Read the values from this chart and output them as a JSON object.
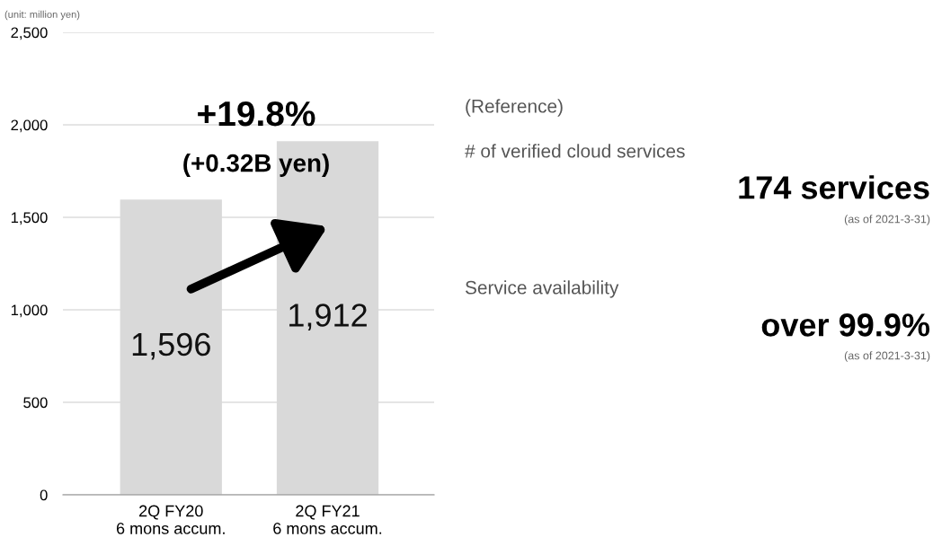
{
  "chart_data": {
    "type": "bar",
    "categories": [
      "2Q FY20\n6 mons accum.",
      "2Q FY21\n6 mons accum."
    ],
    "values": [
      1596,
      1912
    ],
    "value_labels": [
      "1,596",
      "1,912"
    ],
    "color": "#d9d9d9",
    "ylim": [
      0,
      2500
    ],
    "yticks": [
      0,
      {
        "value": 500,
        "label": "500"
      },
      {
        "value": 1000,
        "label": "1,000"
      },
      {
        "value": 1500,
        "label": "1,500"
      },
      {
        "value": 2000,
        "label": "2,000"
      },
      {
        "value": 2500,
        "label": "2,500"
      }
    ],
    "grid": "y",
    "annotations": [
      "(unit: million yen)",
      "+19.8%",
      "(+0.32B yen)",
      "(Reference)",
      "# of verified cloud services",
      "174 services",
      "(as of 2021-3-31)",
      "Service availability",
      "over 99.9%",
      "(as of 2021-3-31)"
    ]
  }
}
